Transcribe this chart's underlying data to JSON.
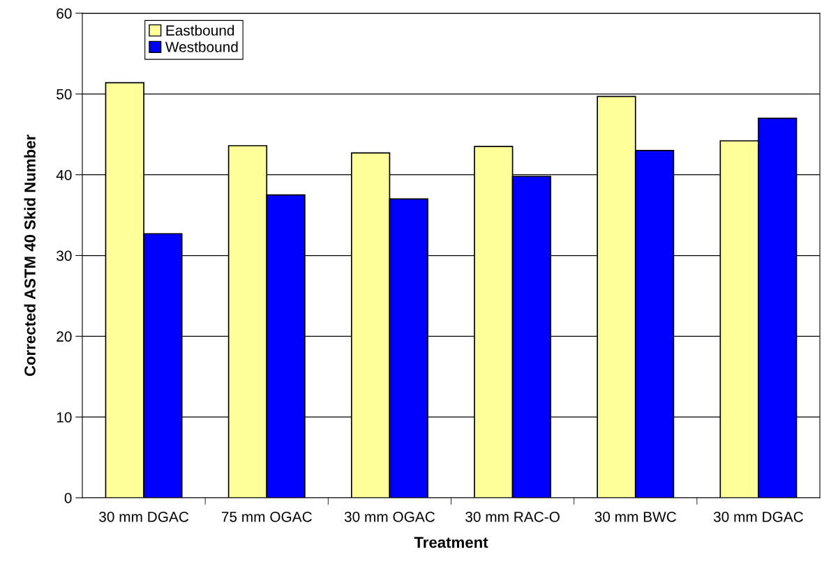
{
  "chart_data": {
    "type": "bar",
    "xlabel": "Treatment",
    "ylabel": "Corrected ASTM 40 Skid Number",
    "categories": [
      "30 mm DGAC",
      "75 mm OGAC",
      "30 mm OGAC",
      "30 mm RAC-O",
      "30 mm BWC",
      "30 mm DGAC"
    ],
    "series": [
      {
        "name": "Eastbound",
        "color": "#ffff99",
        "values": [
          51.4,
          43.6,
          42.7,
          43.5,
          49.7,
          44.2
        ]
      },
      {
        "name": "Westbound",
        "color": "#0000ff",
        "values": [
          32.7,
          37.5,
          37.0,
          39.8,
          43.0,
          47.0
        ]
      }
    ],
    "ylim": [
      0,
      60
    ],
    "yticks": [
      0,
      10,
      20,
      30,
      40,
      50,
      60
    ],
    "grid": "y",
    "legend": "top left"
  }
}
